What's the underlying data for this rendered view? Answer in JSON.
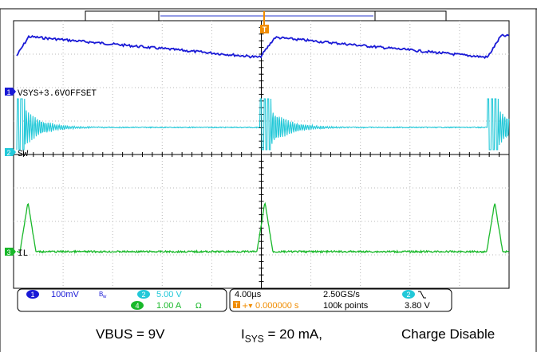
{
  "colors": {
    "ch1": "#1a1ad6",
    "ch2": "#22c8d8",
    "ch3": "#19b82a",
    "ch4": "#19b82a",
    "trigger": "#f08c00",
    "grid": "#b8b8b8",
    "frame": "#000000"
  },
  "channels": {
    "ch1": {
      "number": "1",
      "label": "VSYS+3.6VOFFSET"
    },
    "ch2": {
      "number": "2",
      "label": "SW"
    },
    "ch3": {
      "number": "3",
      "label": "IL"
    }
  },
  "trigger_marker": "T",
  "status": {
    "ch1_badge": "1",
    "ch1_scale": "100mV",
    "ch1_bw_icon": "bandwidth-limit-icon",
    "ch2_badge": "2",
    "ch2_scale": "5.00 V",
    "ch4_badge": "4",
    "ch4_scale": "1.00 A",
    "ch4_icon": "ohm-icon",
    "timebase": "4.00µs",
    "sample_rate": "2.50GS/s",
    "trigger_delay": "0.000000 s",
    "record_length": "100k points",
    "trigger_source_badge": "2",
    "trigger_slope_icon": "falling-edge-icon",
    "trigger_level": "3.80 V"
  },
  "caption": {
    "vbus": "VBUS = 9V",
    "isys_prefix": "I",
    "isys_sub": "SYS",
    "isys_suffix": " = 20 mA,",
    "charge": "Charge Disable"
  }
}
